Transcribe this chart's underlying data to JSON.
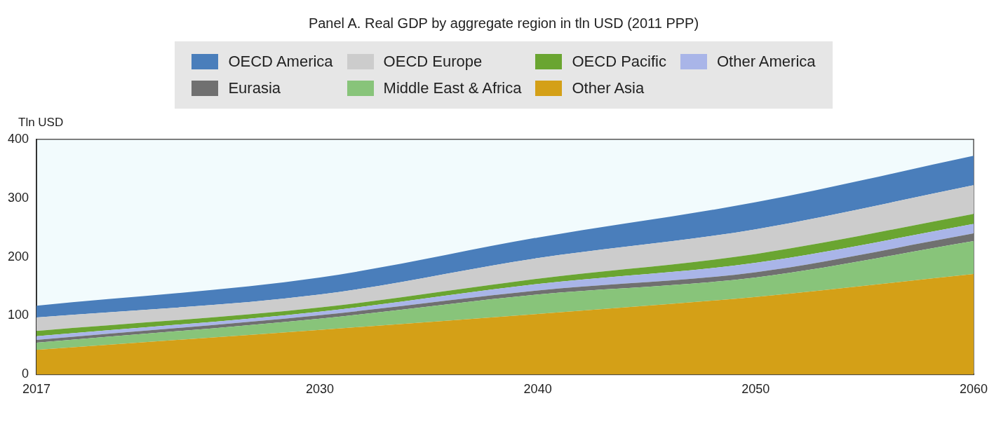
{
  "chart_data": {
    "type": "area",
    "title": "Panel A. Real GDP by aggregate region in tln USD (2011 PPP)",
    "ylabel": "Tln USD",
    "x": [
      2017,
      2030,
      2040,
      2050,
      2060
    ],
    "stacked": true,
    "series": [
      {
        "name": "Other Asia",
        "color": "#d4a017",
        "values": [
          42,
          76,
          103,
          132,
          171
        ]
      },
      {
        "name": "Middle East & Africa",
        "color": "#88c47a",
        "values": [
          12,
          19,
          33,
          33,
          56
        ]
      },
      {
        "name": "Eurasia",
        "color": "#707070",
        "values": [
          5,
          6,
          7,
          9,
          13
        ]
      },
      {
        "name": "Other America",
        "color": "#a9b5e8",
        "values": [
          6,
          6,
          11,
          16,
          16
        ]
      },
      {
        "name": "OECD Pacific",
        "color": "#6aa531",
        "values": [
          9,
          7,
          9,
          15,
          17
        ]
      },
      {
        "name": "OECD Europe",
        "color": "#cccccc",
        "values": [
          23,
          22,
          35,
          42,
          49
        ]
      },
      {
        "name": "OECD America",
        "color": "#4a7ebb",
        "values": [
          20,
          29,
          35,
          46,
          50
        ]
      }
    ],
    "xlim": [
      2017,
      2060
    ],
    "xticks": [
      2017,
      2030,
      2040,
      2050,
      2060
    ],
    "ylim": [
      0,
      400
    ],
    "yticks": [
      0,
      100,
      200,
      300,
      400
    ],
    "grid": false,
    "legend": "top"
  }
}
